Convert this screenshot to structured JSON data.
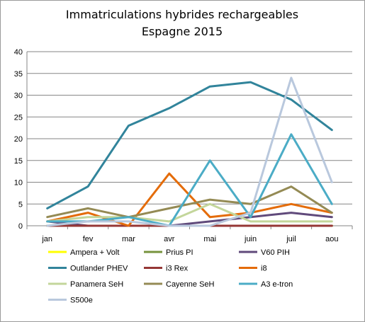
{
  "chart_data": {
    "type": "line",
    "title": "Immatriculations hybrides rechargeables",
    "subtitle": "Espagne 2015",
    "xlabel": "",
    "ylabel": "",
    "categories": [
      "jan",
      "fev",
      "mar",
      "avr",
      "mai",
      "juin",
      "juil",
      "aou"
    ],
    "ylim": [
      0,
      40
    ],
    "yticks": [
      "0",
      "5",
      "10",
      "15",
      "20",
      "25",
      "30",
      "35",
      "40"
    ],
    "grid": true,
    "legend_position": "bottom",
    "series": [
      {
        "name": "Ampera + Volt",
        "color": "#ffff00",
        "values": [
          0,
          0,
          0,
          0,
          0,
          0,
          0,
          0
        ]
      },
      {
        "name": "Prius PI",
        "color": "#77933c",
        "values": [
          0,
          0,
          0,
          0,
          0,
          0,
          0,
          0
        ]
      },
      {
        "name": "V60 PIH",
        "color": "#604a7b",
        "values": [
          1,
          0,
          0,
          0,
          1,
          2,
          3,
          2
        ]
      },
      {
        "name": "Outlander PHEV",
        "color": "#31849b",
        "values": [
          4,
          9,
          23,
          27,
          32,
          33,
          29,
          22
        ]
      },
      {
        "name": "i3 Rex",
        "color": "#953735",
        "values": [
          0,
          0,
          0,
          0,
          0,
          0,
          0,
          0
        ]
      },
      {
        "name": "i8",
        "color": "#e46c0a",
        "values": [
          1,
          3,
          0,
          12,
          2,
          3,
          5,
          3
        ]
      },
      {
        "name": "Panamera SeH",
        "color": "#c3d69b",
        "values": [
          1,
          2,
          2,
          1,
          5,
          1,
          1,
          1
        ]
      },
      {
        "name": "Cayenne SeH",
        "color": "#948a54",
        "values": [
          2,
          4,
          2,
          4,
          6,
          5,
          9,
          3
        ]
      },
      {
        "name": "A3 e-tron",
        "color": "#4bacc6",
        "values": [
          1,
          1,
          2,
          0,
          15,
          2,
          21,
          5
        ]
      },
      {
        "name": "S500e",
        "color": "#b9c8dd",
        "values": [
          0,
          1,
          1,
          0,
          0,
          3,
          34,
          10
        ]
      }
    ]
  }
}
